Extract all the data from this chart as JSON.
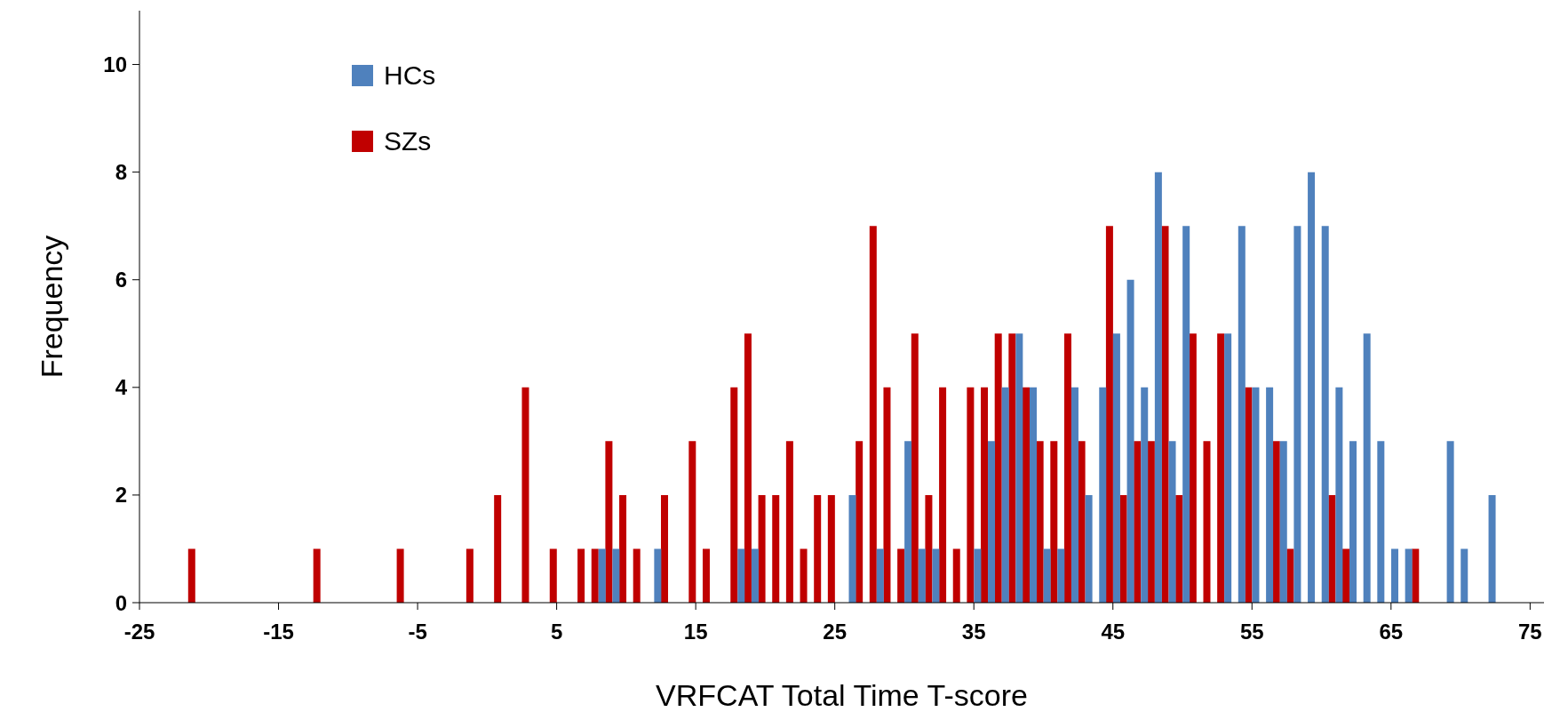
{
  "chart_data": {
    "type": "bar",
    "xlabel": "VRFCAT Total Time T-score",
    "ylabel": "Frequency",
    "x": [
      -21,
      -12,
      -6,
      -1,
      1,
      3,
      5,
      7,
      8,
      9,
      10,
      11,
      12,
      13,
      15,
      16,
      18,
      19,
      20,
      21,
      22,
      23,
      24,
      25,
      26,
      27,
      28,
      29,
      30,
      31,
      32,
      33,
      34,
      35,
      36,
      37,
      38,
      39,
      40,
      41,
      42,
      43,
      44,
      45,
      46,
      47,
      48,
      49,
      50,
      51,
      52,
      53,
      54,
      55,
      56,
      57,
      58,
      59,
      60,
      61,
      62,
      63,
      64,
      65,
      66,
      67,
      69,
      70,
      72
    ],
    "series": [
      {
        "name": "HCs",
        "color": "#4f81bd",
        "values": [
          0,
          0,
          0,
          0,
          0,
          0,
          0,
          0,
          1,
          1,
          0,
          0,
          1,
          0,
          0,
          0,
          1,
          1,
          0,
          0,
          0,
          0,
          0,
          0,
          2,
          0,
          1,
          0,
          3,
          1,
          1,
          0,
          0,
          1,
          3,
          4,
          5,
          4,
          1,
          1,
          4,
          2,
          4,
          5,
          6,
          4,
          8,
          3,
          7,
          null,
          null,
          5,
          7,
          4,
          4,
          3,
          7,
          8,
          7,
          4,
          3,
          5,
          3,
          1,
          1,
          0,
          3,
          1,
          2
        ]
      },
      {
        "name": "SZs",
        "color": "#c00000",
        "values": [
          1,
          1,
          1,
          1,
          2,
          4,
          1,
          1,
          1,
          3,
          2,
          1,
          0,
          2,
          3,
          1,
          4,
          5,
          2,
          2,
          3,
          1,
          2,
          2,
          0,
          3,
          7,
          4,
          1,
          5,
          2,
          4,
          1,
          4,
          4,
          5,
          5,
          4,
          3,
          3,
          5,
          3,
          0,
          7,
          2,
          3,
          3,
          7,
          2,
          5,
          3,
          5,
          0,
          4,
          0,
          3,
          1,
          0,
          0,
          2,
          1,
          0,
          0,
          0,
          0,
          1,
          0,
          0,
          0
        ]
      }
    ],
    "xlim": [
      -25,
      76
    ],
    "xticks": [
      -25,
      -15,
      -5,
      5,
      15,
      25,
      35,
      45,
      55,
      65,
      75
    ],
    "ylim": [
      0,
      11
    ],
    "yticks": [
      0,
      2,
      4,
      6,
      8,
      10
    ],
    "legend": "top left"
  }
}
